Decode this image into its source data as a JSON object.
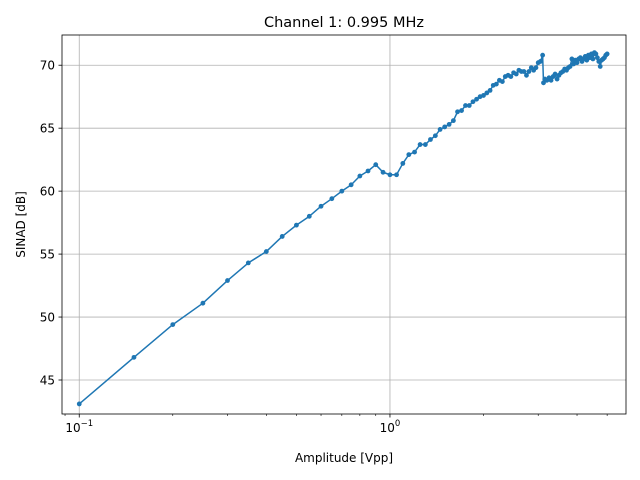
{
  "chart_data": {
    "type": "line",
    "title": "Channel 1: 0.995 MHz",
    "xlabel": "Amplitude [Vpp]",
    "ylabel": "SINAD [dB]",
    "xscale": "log",
    "xlim": [
      0.088,
      5.75
    ],
    "ylim": [
      42.3,
      72.4
    ],
    "grid": true,
    "color": "#1f77b4",
    "x_ticks": [
      {
        "value": 0.1,
        "base": "10",
        "exp": "−1"
      },
      {
        "value": 1,
        "base": "10",
        "exp": "0"
      }
    ],
    "y_ticks": [
      45,
      50,
      55,
      60,
      65,
      70
    ],
    "y_tick_labels": [
      "45",
      "50",
      "55",
      "60",
      "65",
      "70"
    ],
    "series": [
      {
        "x": [
          0.1,
          0.15,
          0.2,
          0.25,
          0.3,
          0.35,
          0.4,
          0.45,
          0.5,
          0.55,
          0.6,
          0.65,
          0.7,
          0.75,
          0.8,
          0.85,
          0.9,
          0.95,
          1.0,
          1.05,
          1.1,
          1.15,
          1.2,
          1.25,
          1.3,
          1.35,
          1.4,
          1.45,
          1.5,
          1.55,
          1.6,
          1.65,
          1.7,
          1.75,
          1.8,
          1.85,
          1.9,
          1.95,
          2.0,
          2.05,
          2.1,
          2.15,
          2.2,
          2.25,
          2.3,
          2.35,
          2.4,
          2.45,
          2.5,
          2.55,
          2.6,
          2.65,
          2.7,
          2.75,
          2.8,
          2.85,
          2.9,
          2.95,
          3.0,
          3.05,
          3.1,
          3.12,
          3.15,
          3.2,
          3.25,
          3.3,
          3.35,
          3.4,
          3.45,
          3.5,
          3.55,
          3.6,
          3.65,
          3.7,
          3.75,
          3.8,
          3.85,
          3.9,
          3.95,
          4.0,
          4.05,
          4.1,
          4.15,
          4.2,
          4.25,
          4.3,
          4.35,
          4.4,
          4.45,
          4.5,
          4.55,
          4.6,
          4.65,
          4.7,
          4.75,
          4.8,
          4.85,
          4.9,
          4.95,
          5.0
        ],
        "y": [
          43.1,
          46.8,
          49.4,
          51.1,
          52.9,
          54.3,
          55.2,
          56.4,
          57.3,
          58.0,
          58.8,
          59.4,
          60.0,
          60.5,
          61.2,
          61.6,
          62.1,
          61.5,
          61.3,
          61.3,
          62.2,
          62.9,
          63.1,
          63.7,
          63.7,
          64.1,
          64.4,
          64.9,
          65.1,
          65.3,
          65.6,
          66.3,
          66.4,
          66.8,
          66.8,
          67.1,
          67.3,
          67.5,
          67.6,
          67.8,
          68.0,
          68.4,
          68.5,
          68.8,
          68.7,
          69.1,
          69.2,
          69.1,
          69.4,
          69.3,
          69.6,
          69.5,
          69.5,
          69.2,
          69.5,
          69.8,
          69.6,
          69.8,
          70.2,
          70.3,
          70.8,
          68.6,
          68.9,
          68.8,
          69.0,
          68.8,
          69.1,
          69.3,
          68.9,
          69.2,
          69.4,
          69.5,
          69.7,
          69.6,
          69.8,
          69.9,
          70.5,
          70.1,
          70.4,
          70.2,
          70.5,
          70.6,
          70.3,
          70.5,
          70.7,
          70.4,
          70.8,
          70.6,
          70.9,
          70.5,
          71.0,
          70.9,
          70.6,
          70.3,
          69.9,
          70.4,
          70.5,
          70.6,
          70.8,
          70.9
        ]
      }
    ]
  }
}
